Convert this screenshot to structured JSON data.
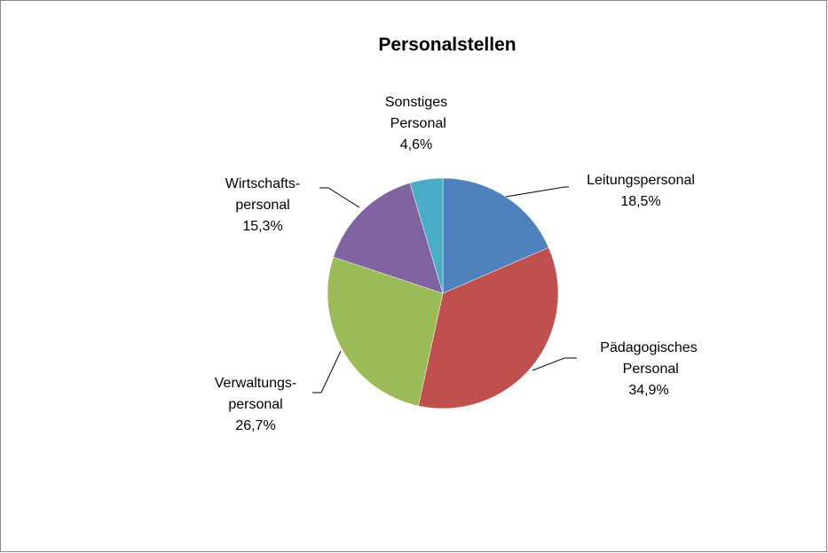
{
  "chart_data": {
    "type": "pie",
    "title": "Personalstellen",
    "categories": [
      "Leitungspersonal",
      "Pädagogisches Personal",
      "Verwaltungs-personal",
      "Wirtschafts-personal",
      "Sonstiges Personal"
    ],
    "values": [
      18.5,
      34.9,
      26.7,
      15.3,
      4.6
    ],
    "value_labels": [
      "18,5%",
      "34,9%",
      "26,7%",
      "15,3%",
      "4,6%"
    ],
    "colors": [
      "#4f81bd",
      "#c0504d",
      "#9bbb59",
      "#8064a2",
      "#4bacc6"
    ]
  }
}
